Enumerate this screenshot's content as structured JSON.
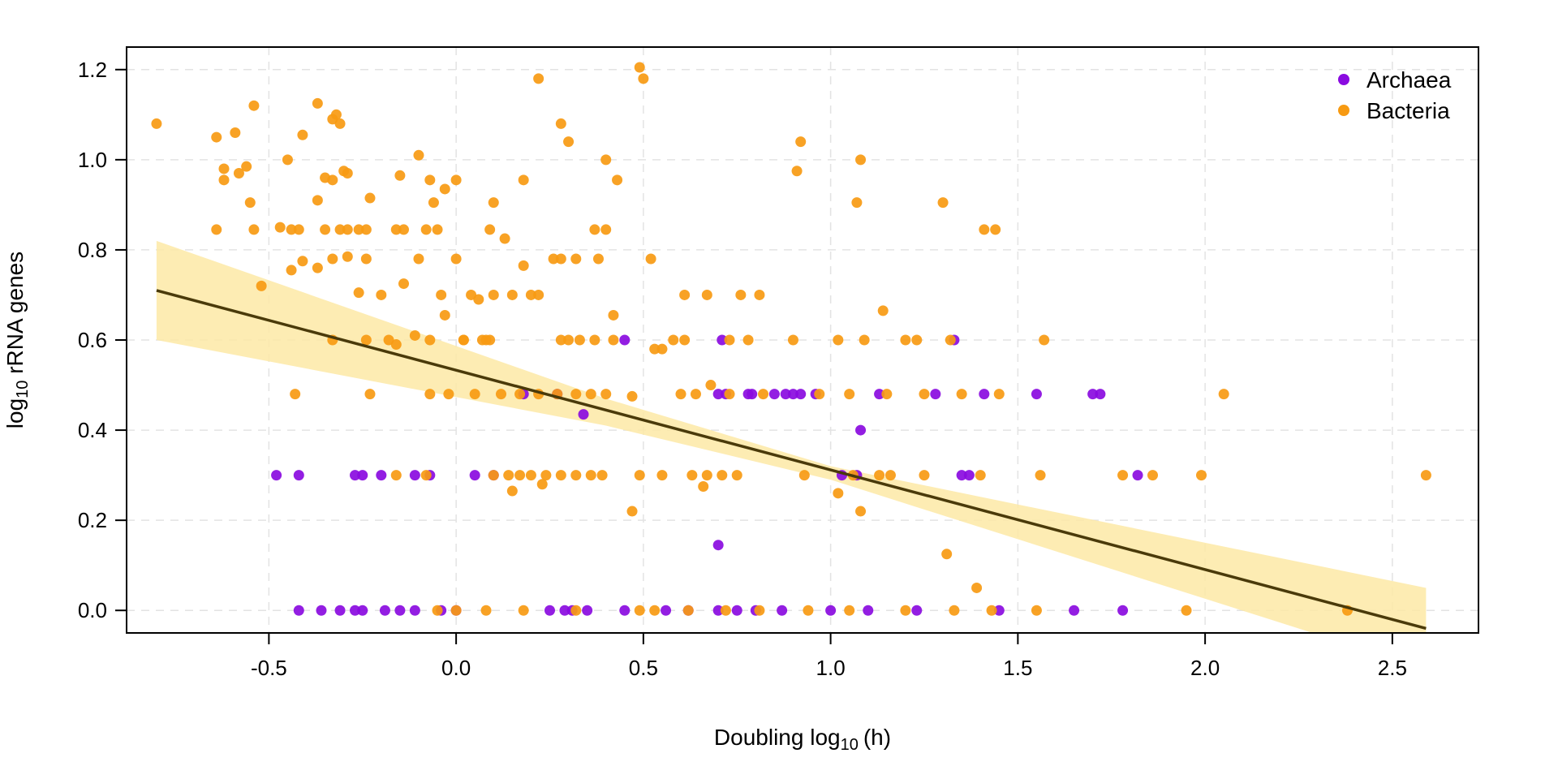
{
  "chart_data": {
    "type": "scatter",
    "xlabel": "Doubling log",
    "xlabel_sub": "10",
    "xlabel_unit": "(h)",
    "ylabel": "log",
    "ylabel_sub": "10",
    "ylabel_rest": " rRNA genes",
    "xlim": [
      -0.88,
      2.73
    ],
    "ylim": [
      -0.05,
      1.25
    ],
    "xticks": [
      -0.5,
      0.0,
      0.5,
      1.0,
      1.5,
      2.0,
      2.5
    ],
    "xtick_labels": [
      "-0.5",
      "0.0",
      "0.5",
      "1.0",
      "1.5",
      "2.0",
      "2.5"
    ],
    "yticks": [
      0.0,
      0.2,
      0.4,
      0.6,
      0.8,
      1.0,
      1.2
    ],
    "ytick_labels": [
      "0.0",
      "0.2",
      "0.4",
      "0.6",
      "0.8",
      "1.0",
      "1.2"
    ],
    "grid": true,
    "legend_position": "top-right",
    "fit_line": {
      "x": [
        -0.8,
        2.59
      ],
      "y": [
        0.71,
        -0.04
      ],
      "color": "#4a3a0a"
    },
    "confidence_band": {
      "x": [
        -0.8,
        0.4,
        1.0,
        2.59
      ],
      "upper": [
        0.82,
        0.47,
        0.32,
        0.05
      ],
      "lower": [
        0.6,
        0.41,
        0.29,
        -0.13
      ],
      "color": "#fde9a6"
    },
    "series": [
      {
        "name": "Archaea",
        "color": "#8a0be0",
        "x": [
          -0.48,
          -0.42,
          -0.27,
          -0.25,
          -0.2,
          -0.11,
          -0.07,
          0.05,
          0.1,
          0.18,
          0.27,
          0.45,
          0.7,
          0.71,
          0.72,
          0.78,
          0.85,
          0.88,
          0.9,
          0.92,
          0.96,
          1.03,
          1.07,
          1.13,
          1.28,
          1.33,
          1.35,
          1.37,
          1.41,
          1.55,
          1.7,
          1.72,
          1.82,
          0.7,
          1.08,
          0.34,
          0.79,
          -0.42,
          -0.36,
          -0.31,
          -0.27,
          -0.25,
          -0.19,
          -0.15,
          -0.11,
          -0.04,
          0.0,
          0.25,
          0.29,
          0.31,
          0.35,
          0.45,
          0.56,
          0.62,
          0.7,
          0.75,
          0.8,
          0.87,
          1.0,
          1.1,
          1.23,
          1.45,
          1.65,
          1.78
        ],
        "y": [
          0.3,
          0.3,
          0.3,
          0.3,
          0.3,
          0.3,
          0.3,
          0.3,
          0.3,
          0.48,
          0.48,
          0.6,
          0.48,
          0.6,
          0.48,
          0.48,
          0.48,
          0.48,
          0.48,
          0.48,
          0.48,
          0.3,
          0.3,
          0.48,
          0.48,
          0.6,
          0.3,
          0.3,
          0.48,
          0.48,
          0.48,
          0.48,
          0.3,
          0.145,
          0.4,
          0.435,
          0.48,
          0.0,
          0.0,
          0.0,
          0.0,
          0.0,
          0.0,
          0.0,
          0.0,
          0.0,
          0.0,
          0.0,
          0.0,
          0.0,
          0.0,
          0.0,
          0.0,
          0.0,
          0.0,
          0.0,
          0.0,
          0.0,
          0.0,
          0.0,
          0.0,
          0.0,
          0.0,
          0.0
        ]
      },
      {
        "name": "Bacteria",
        "color": "#f79a12",
        "x": [
          -0.8,
          -0.64,
          -0.62,
          -0.59,
          -0.54,
          -0.32,
          -0.37,
          -0.33,
          -0.31,
          -0.62,
          -0.58,
          -0.56,
          -0.55,
          -0.45,
          -0.35,
          -0.3,
          -0.15,
          -0.07,
          -0.03,
          0.0,
          -0.41,
          -0.37,
          -0.33,
          -0.29,
          -0.23,
          -0.1,
          -0.06,
          0.1,
          0.18,
          0.22,
          0.28,
          0.3,
          0.4,
          0.43,
          0.5,
          0.49,
          0.92,
          0.91,
          1.08,
          1.07,
          1.3,
          1.41,
          1.44,
          -0.64,
          -0.54,
          -0.47,
          -0.44,
          -0.42,
          -0.35,
          -0.31,
          -0.29,
          -0.26,
          -0.24,
          -0.16,
          -0.14,
          -0.08,
          -0.05,
          0.09,
          0.13,
          0.26,
          0.28,
          0.32,
          0.37,
          0.4,
          -0.52,
          -0.44,
          -0.41,
          -0.37,
          -0.33,
          -0.29,
          -0.26,
          -0.24,
          -0.2,
          -0.14,
          -0.1,
          0.0,
          0.04,
          0.06,
          0.1,
          0.15,
          0.18,
          0.2,
          0.22,
          0.38,
          0.42,
          0.52,
          0.61,
          0.67,
          0.76,
          0.81,
          -0.04,
          -0.03,
          0.02,
          0.07,
          0.09,
          -0.33,
          -0.24,
          -0.18,
          -0.16,
          -0.11,
          -0.07,
          0.02,
          0.08,
          0.28,
          0.3,
          0.33,
          0.37,
          0.42,
          0.55,
          0.58,
          0.61,
          0.73,
          0.78,
          0.9,
          1.02,
          1.09,
          1.2,
          1.23,
          1.32,
          1.57,
          0.53,
          1.14,
          -0.43,
          -0.23,
          -0.07,
          -0.02,
          0.05,
          0.12,
          0.17,
          0.22,
          0.27,
          0.32,
          0.36,
          0.4,
          0.47,
          0.6,
          0.64,
          0.73,
          0.82,
          0.97,
          1.05,
          1.15,
          1.25,
          1.35,
          1.45,
          2.05,
          0.68,
          -0.16,
          -0.08,
          0.1,
          0.14,
          0.17,
          0.2,
          0.24,
          0.28,
          0.32,
          0.36,
          0.39,
          0.49,
          0.55,
          0.63,
          0.67,
          0.71,
          0.75,
          0.93,
          1.06,
          1.13,
          1.16,
          1.25,
          1.4,
          1.56,
          1.78,
          1.86,
          1.99,
          2.59,
          0.15,
          0.23,
          0.47,
          0.66,
          1.02,
          1.08,
          1.31,
          1.39,
          -0.05,
          0.0,
          0.08,
          0.18,
          0.32,
          0.49,
          0.53,
          0.62,
          0.72,
          0.81,
          0.94,
          1.05,
          1.2,
          1.33,
          1.43,
          1.55,
          1.95,
          2.38
        ],
        "y": [
          1.08,
          1.05,
          0.98,
          1.06,
          1.12,
          1.1,
          1.125,
          1.09,
          1.08,
          0.955,
          0.97,
          0.985,
          0.905,
          1.0,
          0.96,
          0.975,
          0.965,
          0.955,
          0.935,
          0.955,
          1.055,
          0.91,
          0.955,
          0.97,
          0.915,
          1.01,
          0.905,
          0.905,
          0.955,
          1.18,
          1.08,
          1.04,
          1.0,
          0.955,
          1.18,
          1.205,
          1.04,
          0.975,
          1.0,
          0.905,
          0.905,
          0.845,
          0.845,
          0.845,
          0.845,
          0.85,
          0.845,
          0.845,
          0.845,
          0.845,
          0.845,
          0.845,
          0.845,
          0.845,
          0.845,
          0.845,
          0.845,
          0.845,
          0.825,
          0.78,
          0.78,
          0.78,
          0.845,
          0.845,
          0.72,
          0.755,
          0.775,
          0.76,
          0.78,
          0.785,
          0.705,
          0.78,
          0.7,
          0.725,
          0.78,
          0.78,
          0.7,
          0.69,
          0.7,
          0.7,
          0.765,
          0.7,
          0.7,
          0.78,
          0.655,
          0.78,
          0.7,
          0.7,
          0.7,
          0.7,
          0.7,
          0.655,
          0.6,
          0.6,
          0.6,
          0.6,
          0.6,
          0.6,
          0.59,
          0.61,
          0.6,
          0.6,
          0.6,
          0.6,
          0.6,
          0.6,
          0.6,
          0.6,
          0.58,
          0.6,
          0.6,
          0.6,
          0.6,
          0.6,
          0.6,
          0.6,
          0.6,
          0.6,
          0.6,
          0.6,
          0.58,
          0.665,
          0.48,
          0.48,
          0.48,
          0.48,
          0.48,
          0.48,
          0.48,
          0.48,
          0.48,
          0.48,
          0.48,
          0.48,
          0.475,
          0.48,
          0.48,
          0.48,
          0.48,
          0.48,
          0.48,
          0.48,
          0.48,
          0.48,
          0.48,
          0.48,
          0.5,
          0.3,
          0.3,
          0.3,
          0.3,
          0.3,
          0.3,
          0.3,
          0.3,
          0.3,
          0.3,
          0.3,
          0.3,
          0.3,
          0.3,
          0.3,
          0.3,
          0.3,
          0.3,
          0.3,
          0.3,
          0.3,
          0.3,
          0.3,
          0.3,
          0.3,
          0.3,
          0.3,
          0.3,
          0.265,
          0.28,
          0.22,
          0.275,
          0.26,
          0.22,
          0.125,
          0.05,
          0.0,
          0.0,
          0.0,
          0.0,
          0.0,
          0.0,
          0.0,
          0.0,
          0.0,
          0.0,
          0.0,
          0.0,
          0.0,
          0.0,
          0.0,
          0.0,
          0.0,
          0.0
        ]
      }
    ]
  }
}
